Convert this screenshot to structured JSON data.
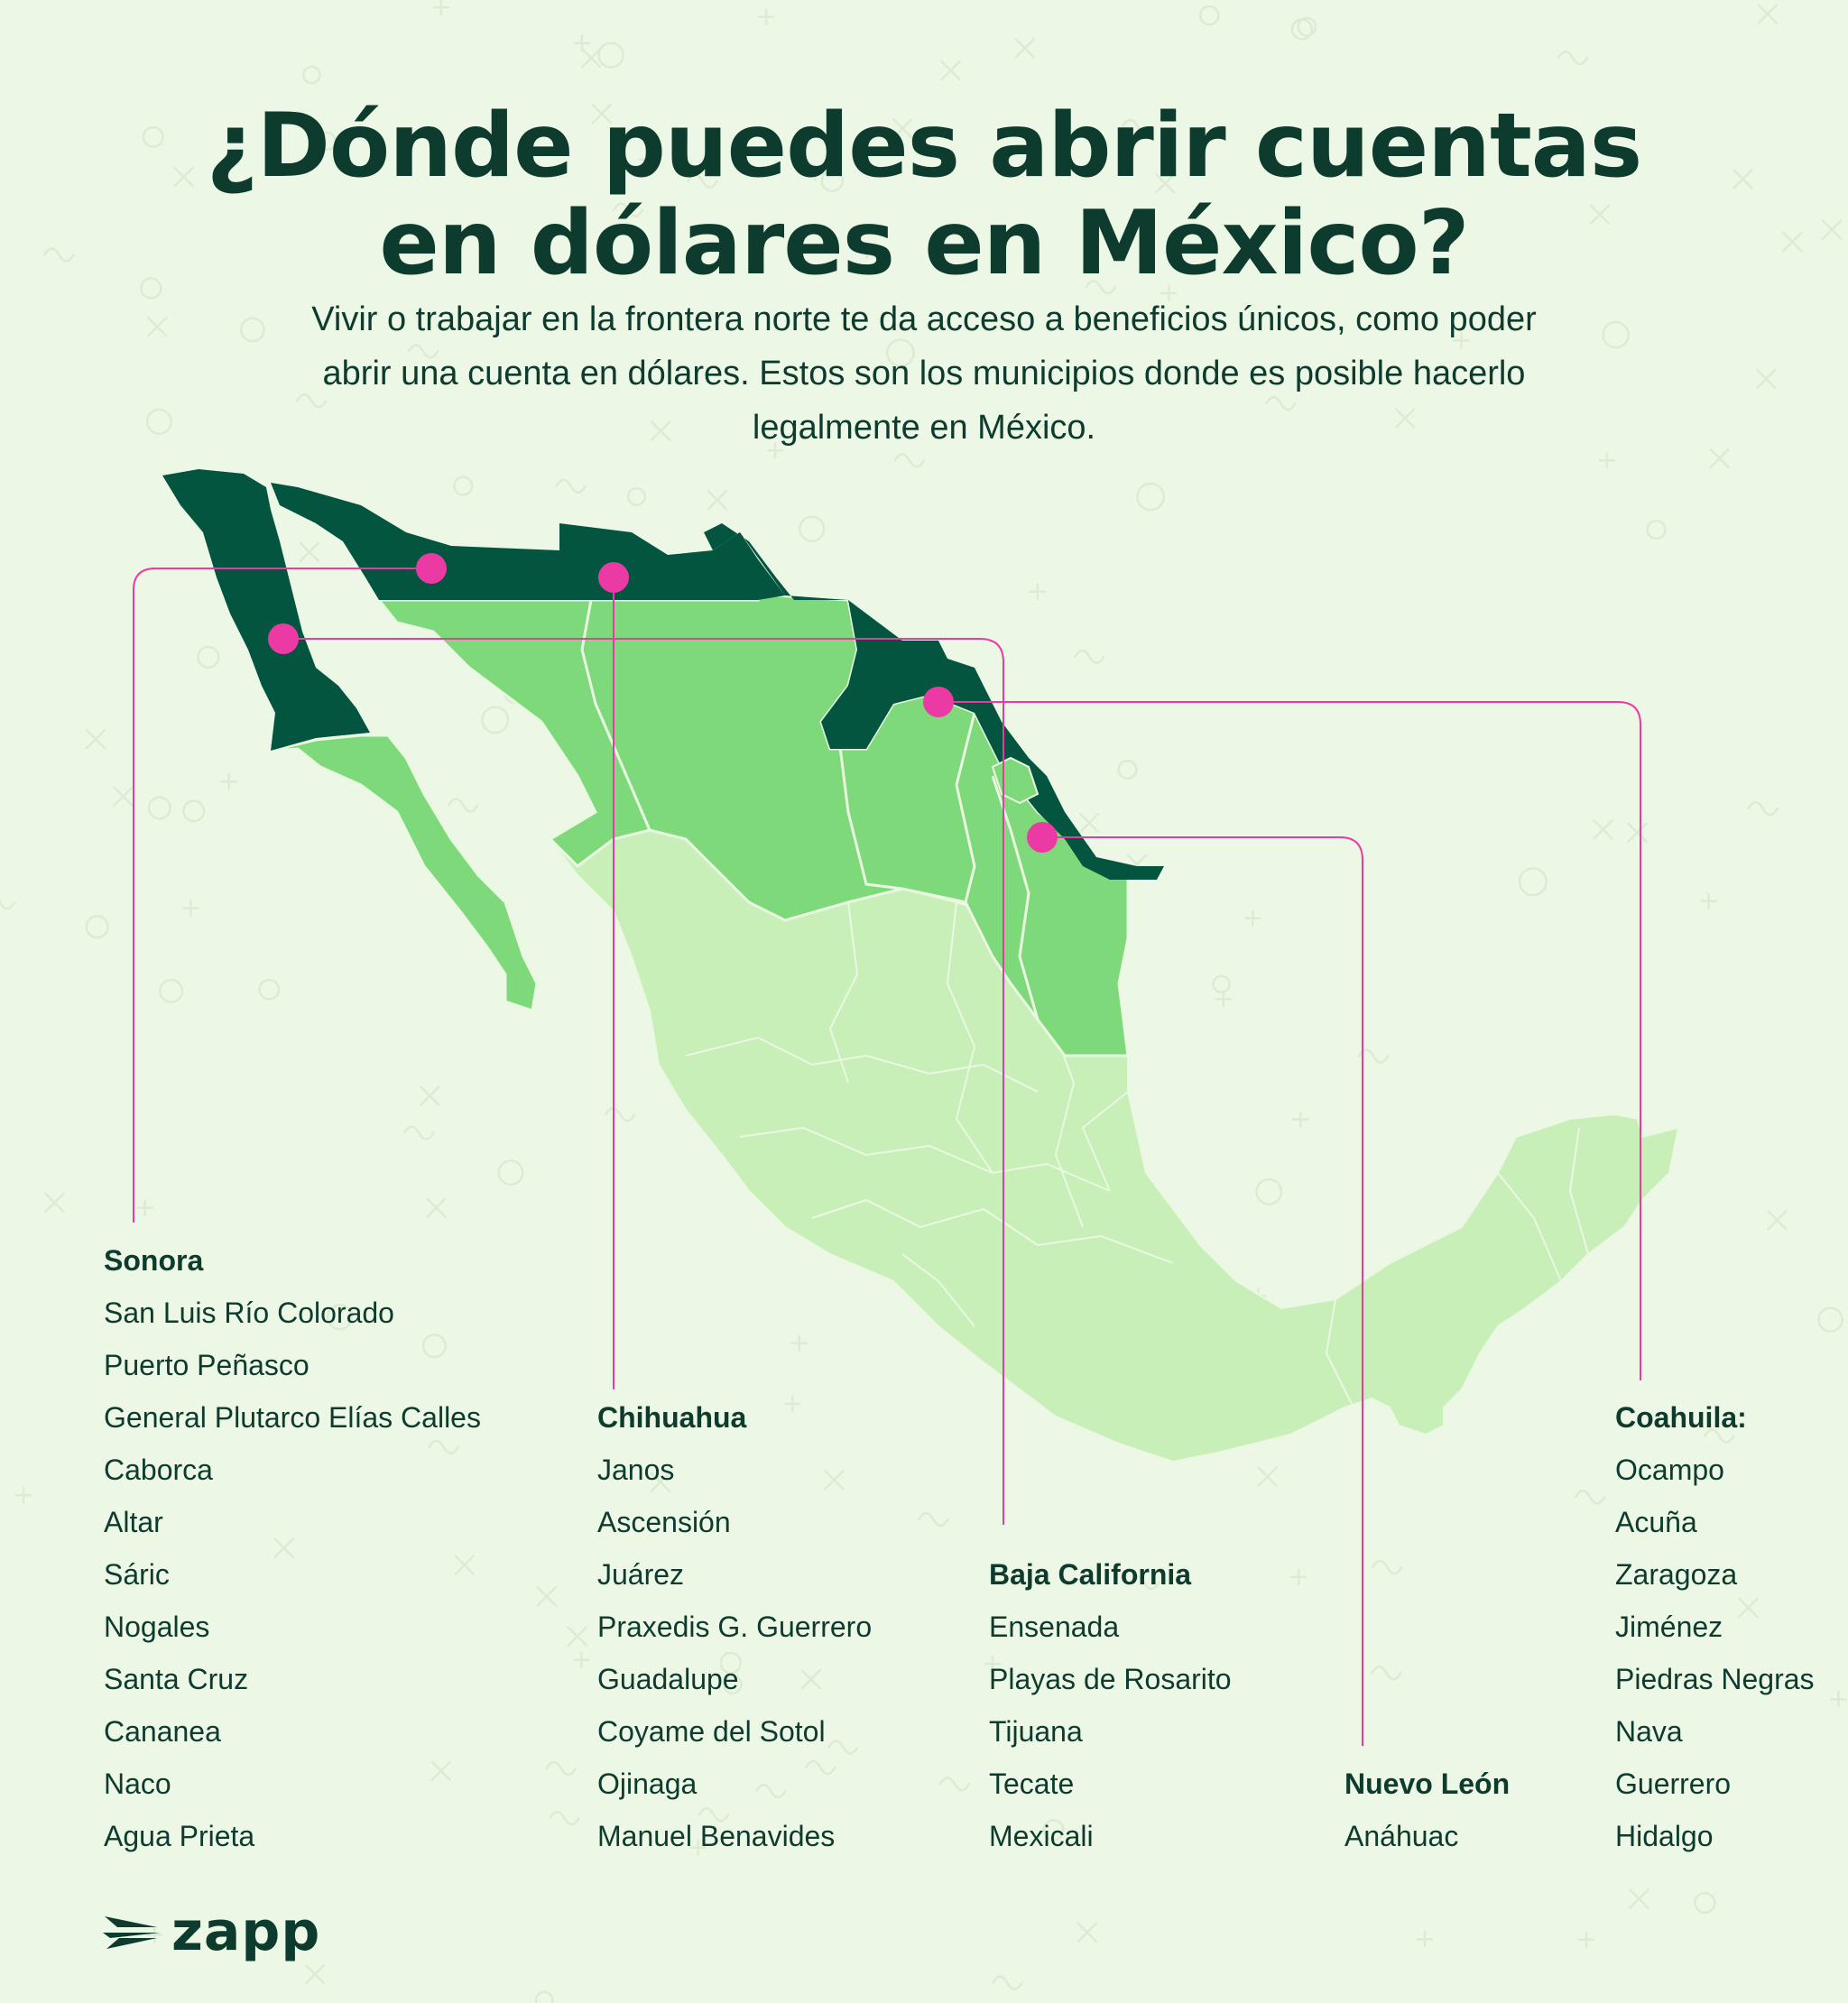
{
  "header": {
    "title_line1": "¿Dónde puedes abrir cuentas",
    "title_line2": "en dólares en México?",
    "subtitle_line1": "Vivir o trabajar en la frontera norte te da acceso a beneficios únicos, como poder",
    "subtitle_line2": "abrir una cuenta en dólares. Estos son los municipios donde es posible hacerlo",
    "subtitle_line3": "legalmente en México."
  },
  "colors": {
    "background": "#edf7e6",
    "border_strip": "#045540",
    "border_states": "#7ed97a",
    "rest_of_country": "#c8efb8",
    "marker": "#ec3aa5",
    "text": "#0d3b2e"
  },
  "states": [
    {
      "name": "Sonora",
      "municipalities": [
        "San Luis Río Colorado",
        "Puerto Peñasco",
        "General Plutarco Elías Calles",
        "Caborca",
        "Altar",
        "Sáric",
        "Nogales",
        "Santa Cruz",
        "Cananea",
        "Naco",
        "Agua Prieta"
      ]
    },
    {
      "name": "Chihuahua",
      "municipalities": [
        "Janos",
        "Ascensión",
        "Juárez",
        "Praxedis G. Guerrero",
        "Guadalupe",
        "Coyame del Sotol",
        "Ojinaga",
        "Manuel Benavides"
      ]
    },
    {
      "name": "Baja California",
      "municipalities": [
        "Ensenada",
        "Playas de Rosarito",
        "Tijuana",
        "Tecate",
        "Mexicali"
      ]
    },
    {
      "name": "Nuevo León",
      "municipalities": [
        "Anáhuac"
      ]
    },
    {
      "name": "Coahuila:",
      "municipalities": [
        "Ocampo",
        "Acuña",
        "Zaragoza",
        "Jiménez",
        "Piedras Negras",
        "Nava",
        "Guerrero",
        "Hidalgo"
      ]
    }
  ],
  "logo": {
    "text": "zapp",
    "icon": "zapp-wing-icon"
  }
}
